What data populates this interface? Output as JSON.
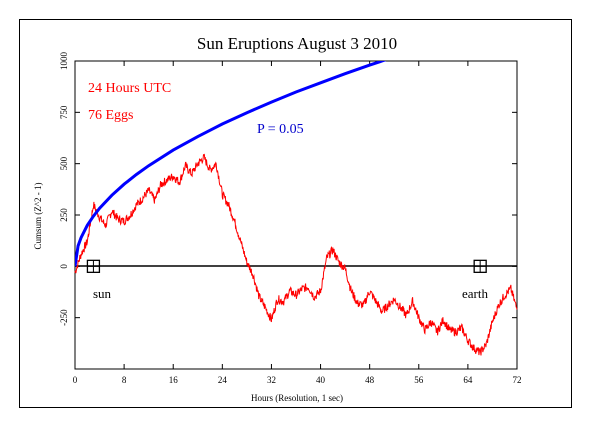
{
  "chart_data": {
    "type": "line",
    "title": "Sun Eruptions August 3 2010",
    "xlabel": "Hours (Resolution, 1 sec)",
    "ylabel": "Cumsum (Z^2 - 1)",
    "xlim": [
      0,
      72
    ],
    "ylim": [
      -500,
      1000
    ],
    "x_ticks": [
      0,
      8,
      16,
      24,
      32,
      40,
      48,
      56,
      64,
      72
    ],
    "y_ticks": [
      1000,
      750,
      500,
      250,
      0,
      -250
    ],
    "grid": false,
    "annotations": {
      "line1": "24 Hours UTC",
      "line2": "76 Eggs",
      "probability": "P = 0.05",
      "marker_left": "sun",
      "marker_right": "earth"
    },
    "markers": [
      {
        "name": "sun",
        "x": 3,
        "y": 0
      },
      {
        "name": "earth",
        "x": 66,
        "y": 0
      }
    ],
    "series": [
      {
        "name": "cumsum",
        "color": "#ff0000",
        "x": [
          0,
          1,
          2,
          3,
          4,
          5,
          6,
          7,
          8,
          9,
          10,
          11,
          12,
          13,
          14,
          15,
          16,
          17,
          18,
          19,
          20,
          21,
          22,
          23,
          24,
          25,
          26,
          27,
          28,
          29,
          30,
          31,
          32,
          33,
          34,
          35,
          36,
          37,
          38,
          39,
          40,
          41,
          42,
          43,
          44,
          45,
          46,
          47,
          48,
          49,
          50,
          51,
          52,
          53,
          54,
          55,
          56,
          57,
          58,
          59,
          60,
          61,
          62,
          63,
          64,
          65,
          66,
          67,
          68,
          69,
          70,
          71,
          72
        ],
        "y": [
          -30,
          60,
          120,
          300,
          240,
          200,
          270,
          230,
          220,
          250,
          300,
          330,
          370,
          320,
          400,
          420,
          440,
          410,
          490,
          450,
          500,
          530,
          470,
          500,
          350,
          300,
          220,
          120,
          20,
          -40,
          -150,
          -200,
          -260,
          -160,
          -170,
          -120,
          -140,
          -110,
          -100,
          -150,
          -120,
          40,
          80,
          20,
          -10,
          -120,
          -180,
          -190,
          -120,
          -170,
          -220,
          -190,
          -160,
          -200,
          -240,
          -170,
          -250,
          -310,
          -270,
          -320,
          -260,
          -310,
          -320,
          -300,
          -360,
          -400,
          -420,
          -380,
          -270,
          -190,
          -140,
          -110,
          -210
        ]
      },
      {
        "name": "P = 0.05",
        "color": "#0000ff",
        "x": [
          0,
          0.5,
          1,
          2,
          3,
          4,
          6,
          8,
          10,
          12,
          16,
          20,
          24,
          28,
          32,
          36,
          40,
          44,
          48,
          52
        ],
        "y": [
          0,
          100,
          140,
          200,
          244,
          283,
          346,
          400,
          447,
          490,
          566,
          632,
          693,
          748,
          800,
          849,
          894,
          938,
          980,
          1020
        ]
      }
    ]
  }
}
